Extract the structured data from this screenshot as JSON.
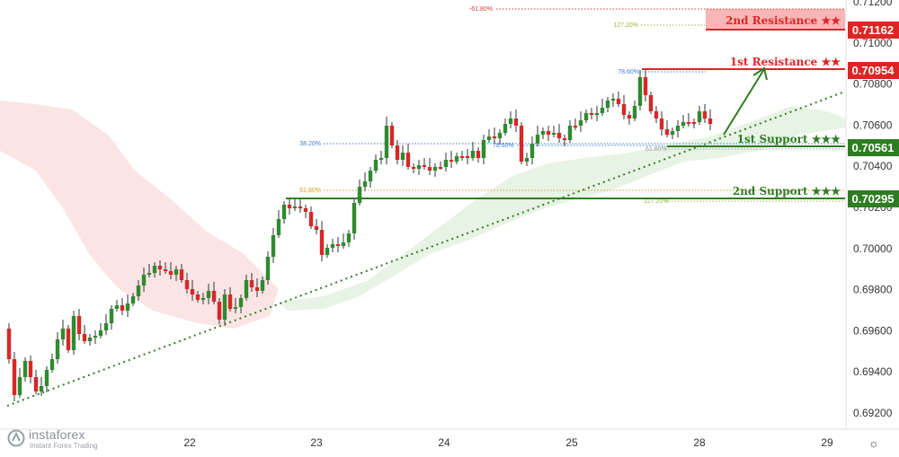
{
  "chart_data": {
    "type": "candlestick",
    "title": "",
    "xlabel": "",
    "ylabel": "",
    "x_ticks": [
      "22",
      "23",
      "24",
      "25",
      "28",
      "29"
    ],
    "y_ticks": [
      "0.71200",
      "0.71000",
      "0.70800",
      "0.70600",
      "0.70400",
      "0.70200",
      "0.70000",
      "0.69800",
      "0.69600",
      "0.69400",
      "0.69200"
    ],
    "ylim": [
      0.6911,
      0.7136
    ],
    "levels": [
      {
        "name": "2nd Resistance ★★",
        "value": "0.71162",
        "color": "#e02424"
      },
      {
        "name": "1st Resistance ★★",
        "value": "0.70954",
        "color": "#e02424"
      },
      {
        "name": "1st Support ★★★",
        "value": "0.70561",
        "color": "#2e7d22"
      },
      {
        "name": "2nd Support ★★★",
        "value": "0.70295",
        "color": "#2e7d22"
      }
    ],
    "fib_labels": [
      {
        "text": "-61.80%",
        "color": "#d83b3b"
      },
      {
        "text": "127.20%",
        "color": "#9ab73a"
      },
      {
        "text": "78.60%",
        "color": "#3b7fd8"
      },
      {
        "text": "38.20%",
        "color": "#3b7fd8"
      },
      {
        "text": "78.60%",
        "color": "#3b7fd8"
      },
      {
        "text": "61.80%",
        "color": "#9aa0a8"
      },
      {
        "text": "61.80%",
        "color": "#d89a20"
      },
      {
        "text": "127.20%",
        "color": "#9ab73a"
      }
    ],
    "grid": false,
    "legend": "none",
    "colors": {
      "up": "#2e8b2e",
      "down": "#d62828",
      "resistance": "#e02424",
      "support": "#2e7d22",
      "trendline": "#2e7d22",
      "cloud_bull": "#e6f2e3",
      "cloud_bear": "#fbe1e1"
    }
  },
  "branding": {
    "logo_name": "instaforex",
    "logo_tagline": "Instant Forex Trading"
  },
  "icons": {
    "settings": "gear-icon",
    "logo": "instaforex-logo-icon"
  }
}
